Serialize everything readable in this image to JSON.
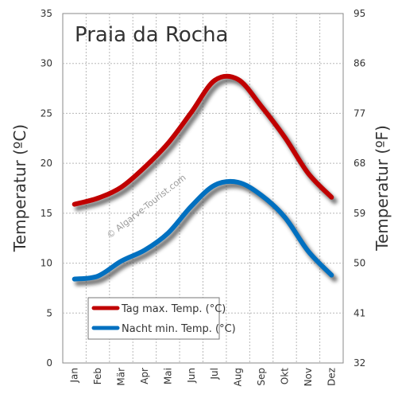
{
  "chart_data": {
    "type": "line",
    "title": "Praia da Rocha",
    "ylabel_left": "Temperatur (ºC)",
    "ylabel_right": "Temperatur (ºF)",
    "categories": [
      "Jan",
      "Feb",
      "Mär",
      "Apr",
      "Mai",
      "Jun",
      "Jul",
      "Aug",
      "Sep",
      "Okt",
      "Nov",
      "Dez"
    ],
    "ylim": [
      0,
      35
    ],
    "yticks_left": [
      0,
      5,
      10,
      15,
      20,
      25,
      30,
      35
    ],
    "yticks_right": [
      "32",
      "41",
      "50",
      "59",
      "68",
      "77",
      "86",
      "95"
    ],
    "grid": true,
    "legend_position": "bottom-left",
    "watermark": "© Algarve-Tourist.com",
    "series": [
      {
        "name": "Tag max. Temp. (°C)",
        "color": "#c00000",
        "values": [
          15.9,
          16.5,
          17.6,
          19.6,
          22.0,
          25.1,
          28.3,
          28.4,
          25.7,
          22.6,
          19.0,
          16.6
        ]
      },
      {
        "name": "Nacht min. Temp. (°C)",
        "color": "#0070c0",
        "values": [
          8.4,
          8.7,
          10.2,
          11.3,
          13.0,
          15.7,
          17.8,
          18.1,
          16.8,
          14.6,
          11.2,
          8.8
        ]
      }
    ]
  }
}
